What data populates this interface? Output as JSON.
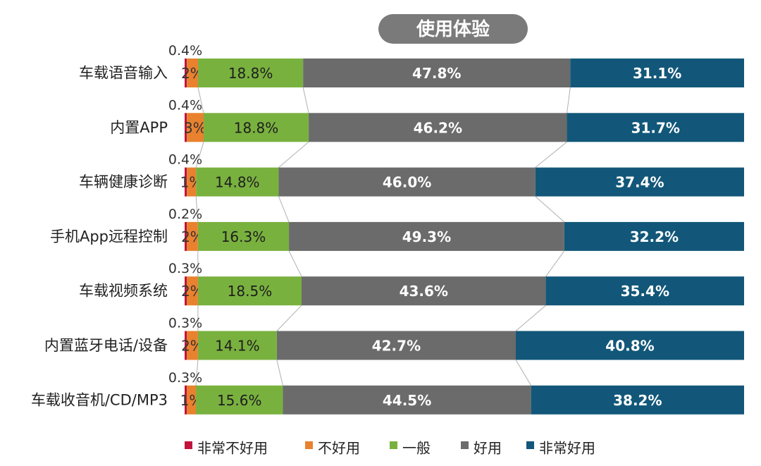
{
  "chart_data": {
    "type": "bar",
    "orientation": "horizontal",
    "stacked": true,
    "normalized": true,
    "title": "使用体验",
    "categories": [
      "车载语音输入",
      "内置APP",
      "车辆健康诊断",
      "手机App远程控制",
      "车载视频系统",
      "内置蓝牙电话/设备",
      "车载收音机/CD/MP3"
    ],
    "series": [
      {
        "name": "非常不好用",
        "color": "#c0143c",
        "values": [
          0.4,
          0.4,
          0.4,
          0.2,
          0.3,
          0.3,
          0.3
        ],
        "labels": [
          "0.4%",
          "0.4%",
          "0.4%",
          "0.2%",
          "0.3%",
          "0.3%",
          "0.3%"
        ]
      },
      {
        "name": "不好用",
        "color": "#e8822f",
        "values": [
          2,
          3,
          1,
          2,
          2,
          2,
          1
        ],
        "labels": [
          "2%",
          "3%",
          "1%",
          "2%",
          "2%",
          "2%",
          "1%"
        ]
      },
      {
        "name": "一般",
        "color": "#79b13f",
        "values": [
          18.8,
          18.8,
          14.8,
          16.3,
          18.5,
          14.1,
          15.6
        ],
        "labels": [
          "18.8%",
          "18.8%",
          "14.8%",
          "16.3%",
          "18.5%",
          "14.1%",
          "15.6%"
        ]
      },
      {
        "name": "好用",
        "color": "#6b6b6b",
        "values": [
          47.8,
          46.2,
          46.0,
          49.3,
          43.6,
          42.7,
          44.5
        ],
        "labels": [
          "47.8%",
          "46.2%",
          "46.0%",
          "49.3%",
          "43.6%",
          "42.7%",
          "44.5%"
        ]
      },
      {
        "name": "非常好用",
        "color": "#125779",
        "values": [
          31.1,
          31.7,
          37.4,
          32.2,
          35.4,
          40.8,
          38.2
        ],
        "labels": [
          "31.1%",
          "31.7%",
          "37.4%",
          "32.2%",
          "35.4%",
          "40.8%",
          "38.2%"
        ]
      }
    ],
    "legend": {
      "position": "bottom",
      "items": [
        "非常不好用",
        "不好用",
        "一般",
        "好用",
        "非常好用"
      ]
    },
    "xlim": [
      0,
      100
    ],
    "grid": false
  }
}
